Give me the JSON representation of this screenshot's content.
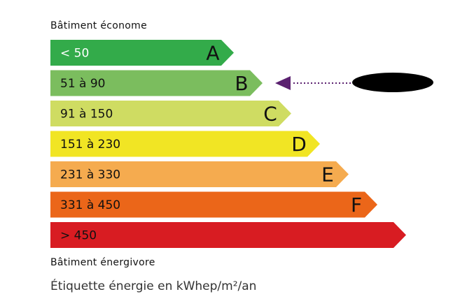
{
  "top_label": "Bâtiment économe",
  "bottom_label": "Bâtiment énergivore",
  "unit_label": "Étiquette énergie en kWhep/m²/an",
  "classes": [
    {
      "range": "< 50",
      "letter": "A",
      "color": "#33ab4a",
      "text_color": "#ffffff"
    },
    {
      "range": "51 à 90",
      "letter": "B",
      "color": "#7bbd5e",
      "text_color": "#111111"
    },
    {
      "range": "91 à 150",
      "letter": "C",
      "color": "#cfdc62",
      "text_color": "#111111"
    },
    {
      "range": "151 à 230",
      "letter": "D",
      "color": "#f1e524",
      "text_color": "#111111"
    },
    {
      "range": "231 à 330",
      "letter": "E",
      "color": "#f5ab4f",
      "text_color": "#111111"
    },
    {
      "range": "331 à 450",
      "letter": "F",
      "color": "#eb6619",
      "text_color": "#111111"
    },
    {
      "range": "> 450",
      "letter": "",
      "color": "#d81c22",
      "text_color": "#111111"
    }
  ],
  "indicator": {
    "class": "B",
    "color": "#5b2170",
    "value_redacted": true
  }
}
